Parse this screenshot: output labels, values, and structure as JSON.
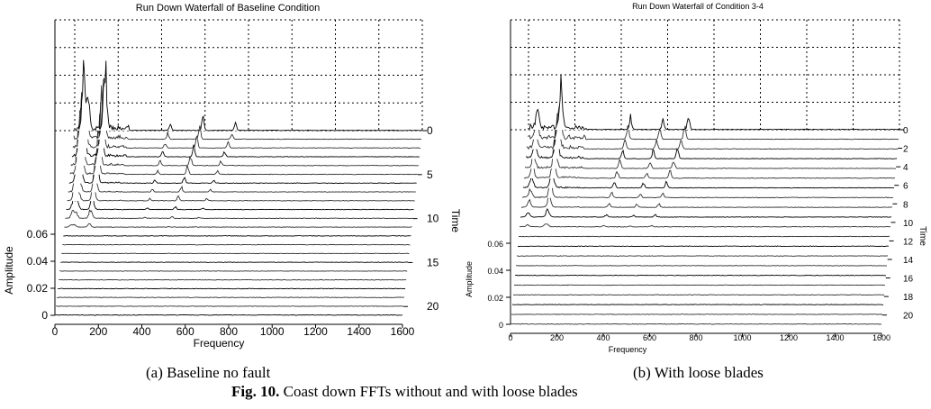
{
  "figure": {
    "label": "Fig. 10.",
    "text": "Coast down FFTs without and with loose blades"
  },
  "panels": [
    {
      "caption": "(a) Baseline no fault"
    },
    {
      "caption": "(b) With loose blades"
    }
  ],
  "chart_data": [
    {
      "type": "line",
      "title": "Run Down Waterfall of Baseline Condition",
      "xlabel": "Frequency",
      "ylabel": "Amplitude",
      "zlabel": "Time",
      "x_ticks": [
        0,
        200,
        400,
        600,
        800,
        1000,
        1200,
        1400,
        1600
      ],
      "xlim": [
        0,
        1600
      ],
      "y_ticks": [
        0,
        0.02,
        0.04,
        0.06
      ],
      "ylim": [
        0,
        0.06
      ],
      "time_ticks": [
        0,
        5,
        10,
        15,
        20
      ],
      "time_range": [
        0,
        21
      ],
      "grid": true,
      "series_count": 22,
      "peaks": [
        {
          "frequency": 40,
          "amplitude": 0.05
        },
        {
          "frequency": 60,
          "amplitude": 0.035
        },
        {
          "frequency": 140,
          "amplitude": 0.06
        },
        {
          "frequency": 440,
          "amplitude": 0.006
        },
        {
          "frequency": 590,
          "amplitude": 0.012
        },
        {
          "frequency": 740,
          "amplitude": 0.006
        }
      ]
    },
    {
      "type": "line",
      "title": "Run Down Waterfall of Condition 3-4",
      "xlabel": "Frequency",
      "ylabel": "Amplitude",
      "zlabel": "Time",
      "x_ticks": [
        0,
        200,
        400,
        600,
        800,
        1000,
        1200,
        1400,
        1600
      ],
      "xlim": [
        0,
        1600
      ],
      "y_ticks": [
        0,
        0.02,
        0.04,
        0.06
      ],
      "ylim": [
        0,
        0.06
      ],
      "time_ticks": [
        0,
        2,
        4,
        6,
        8,
        10,
        12,
        14,
        16,
        18,
        20
      ],
      "time_range": [
        0,
        21
      ],
      "grid": true,
      "series_count": 21,
      "peaks": [
        {
          "frequency": 40,
          "amplitude": 0.02
        },
        {
          "frequency": 140,
          "amplitude": 0.04
        },
        {
          "frequency": 440,
          "amplitude": 0.012
        },
        {
          "frequency": 580,
          "amplitude": 0.01
        },
        {
          "frequency": 690,
          "amplitude": 0.012
        }
      ]
    }
  ]
}
